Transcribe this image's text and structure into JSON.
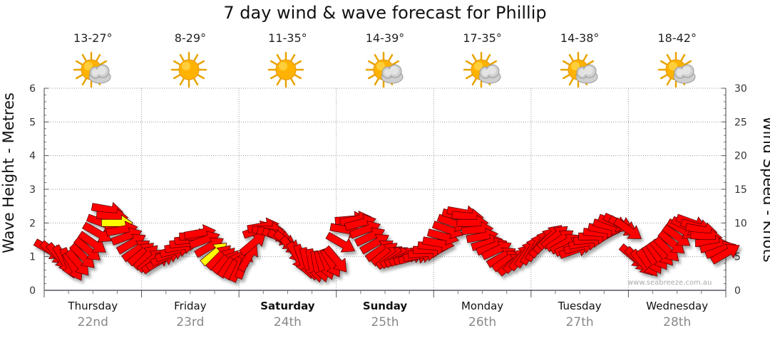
{
  "title": "7 day wind & wave forecast for Phillip",
  "days": [
    {
      "name": "Thursday",
      "date": "22nd",
      "temp": "13-27°",
      "icon": "sun-cloud-icon",
      "bold": false
    },
    {
      "name": "Friday",
      "date": "23rd",
      "temp": "8-29°",
      "icon": "sun-icon",
      "bold": false
    },
    {
      "name": "Saturday",
      "date": "24th",
      "temp": "11-35°",
      "icon": "sun-icon",
      "bold": true
    },
    {
      "name": "Sunday",
      "date": "25th",
      "temp": "14-39°",
      "icon": "sun-cloud-icon",
      "bold": true
    },
    {
      "name": "Monday",
      "date": "26th",
      "temp": "17-35°",
      "icon": "sun-cloud-icon",
      "bold": false
    },
    {
      "name": "Tuesday",
      "date": "27th",
      "temp": "14-38°",
      "icon": "sun-cloud-icon",
      "bold": false
    },
    {
      "name": "Wednesday",
      "date": "28th",
      "temp": "18-42°",
      "icon": "sun-cloud-icon",
      "bold": false
    }
  ],
  "credit": "www.seabreeze.com.au",
  "chart_data": {
    "type": "scatter",
    "title": "7 day wind & wave forecast for Phillip",
    "ylabel_left": "Wave Height - Metres",
    "ylabel_right": "Wind Speed - Knots",
    "ylim_left": [
      0,
      6
    ],
    "ylim_right": [
      0,
      30
    ],
    "yticks_left": [
      "0",
      "1",
      "2",
      "3",
      "4",
      "5",
      "6"
    ],
    "yticks_right": [
      "0",
      "5",
      "10",
      "15",
      "20",
      "25",
      "30"
    ],
    "grid": true,
    "categories": [
      "Thursday 22nd",
      "Friday 23rd",
      "Saturday 24th",
      "Sunday 25th",
      "Monday 26th",
      "Tuesday 27th",
      "Wednesday 28th"
    ],
    "wind_series": {
      "name": "Wind arrows",
      "x": [
        0.0,
        0.05,
        0.1,
        0.15,
        0.2,
        0.25,
        0.3,
        0.35,
        0.4,
        0.45,
        0.5,
        0.55,
        0.6,
        0.65,
        0.7,
        0.75,
        0.8,
        0.85,
        0.9,
        0.95,
        1.0,
        1.05,
        1.1,
        1.15,
        1.2,
        1.25,
        1.3,
        1.35,
        1.4,
        1.45,
        1.5,
        1.55,
        1.6,
        1.65,
        1.7,
        1.75,
        1.8,
        1.85,
        1.9,
        1.95,
        2.0,
        2.05,
        2.1,
        2.15,
        2.2,
        2.25,
        2.3,
        2.35,
        2.4,
        2.45,
        2.5,
        2.55,
        2.6,
        2.65,
        2.7,
        2.75,
        2.8,
        2.85,
        2.9,
        2.95,
        3.0,
        3.05,
        3.1,
        3.15,
        3.2,
        3.25,
        3.3,
        3.35,
        3.4,
        3.45,
        3.5,
        3.55,
        3.6,
        3.65,
        3.7,
        3.75,
        3.8,
        3.85,
        3.9,
        3.95,
        4.0,
        4.05,
        4.1,
        4.15,
        4.2,
        4.25,
        4.3,
        4.35,
        4.4,
        4.45,
        4.5,
        4.55,
        4.6,
        4.65,
        4.7,
        4.75,
        4.8,
        4.85,
        4.9,
        4.95,
        5.0,
        5.05,
        5.1,
        5.15,
        5.2,
        5.25,
        5.3,
        5.35,
        5.4,
        5.45,
        5.5,
        5.55,
        5.6,
        5.65,
        5.7,
        5.75,
        5.8,
        5.85,
        5.9,
        5.95,
        6.0,
        6.05,
        6.1,
        6.15,
        6.2,
        6.25,
        6.3,
        6.35,
        6.4,
        6.45,
        6.5,
        6.55,
        6.6,
        6.65,
        6.7,
        6.75,
        6.8,
        6.85,
        6.9,
        6.95
      ],
      "knots": [
        6,
        5.5,
        5,
        4.5,
        4,
        3.5,
        4,
        5,
        6,
        7,
        8.5,
        10,
        12,
        11,
        10,
        9,
        8,
        7,
        6,
        5.5,
        5,
        4.5,
        4.2,
        4.5,
        5,
        5.5,
        6,
        6.5,
        7,
        7.5,
        8,
        8.5,
        7.5,
        6.5,
        5.5,
        5,
        4.5,
        4,
        3.8,
        3.5,
        4,
        5,
        7,
        9,
        9.5,
        9,
        8.5,
        8,
        7.5,
        7,
        6,
        5,
        4.5,
        4,
        3.8,
        3.5,
        3.5,
        3.8,
        4,
        4.5,
        7,
        9,
        10.5,
        10.5,
        10,
        9,
        8,
        7,
        6,
        5.5,
        5,
        5,
        5,
        5,
        5,
        5,
        5.2,
        5.5,
        6,
        6.5,
        7,
        8,
        9,
        10,
        11,
        11.5,
        11,
        10,
        9,
        8,
        7,
        6.5,
        6,
        5,
        4.5,
        4,
        4.5,
        5,
        5.5,
        6,
        6.5,
        7,
        7.5,
        8,
        8,
        7.5,
        7,
        6.5,
        6,
        6.5,
        7,
        7.5,
        8,
        8.5,
        9,
        9.5,
        10,
        10,
        9.5,
        9,
        5,
        4.5,
        4,
        4,
        4.5,
        5,
        5.5,
        6,
        7,
        8,
        9,
        9.5,
        10,
        9.5,
        9,
        8,
        7,
        6.5,
        6,
        5.5
      ],
      "arrow_angle_deg": [
        30,
        40,
        50,
        60,
        70,
        60,
        50,
        45,
        40,
        35,
        30,
        20,
        10,
        5,
        0,
        -10,
        -20,
        -30,
        -35,
        -40,
        -45,
        -40,
        -35,
        -30,
        -25,
        -20,
        -15,
        -10,
        -5,
        -5,
        0,
        -10,
        -20,
        -30,
        -40,
        -45,
        -50,
        -55,
        -60,
        -65,
        -70,
        -60,
        -40,
        -20,
        -10,
        0,
        10,
        20,
        30,
        40,
        50,
        60,
        70,
        75,
        80,
        80,
        75,
        70,
        60,
        50,
        30,
        10,
        -5,
        -10,
        -15,
        -20,
        -25,
        -30,
        -35,
        -40,
        -40,
        -35,
        -30,
        -25,
        -20,
        -15,
        -10,
        -5,
        0,
        5,
        10,
        15,
        20,
        20,
        15,
        10,
        5,
        0,
        -5,
        -10,
        -15,
        -20,
        -25,
        -30,
        -35,
        -40,
        -45,
        -50,
        -55,
        -60,
        -60,
        -55,
        -50,
        -45,
        -40,
        -35,
        -30,
        -25,
        -20,
        -15,
        -10,
        -5,
        0,
        5,
        10,
        15,
        20,
        25,
        30,
        35,
        40,
        45,
        50,
        55,
        60,
        55,
        50,
        45,
        40,
        35,
        30,
        25,
        20,
        15,
        10,
        5,
        0,
        -10,
        -20,
        -30
      ],
      "highlight_indices": [
        14,
        34
      ],
      "color": "#ff0000",
      "highlight_color": "#ffff00",
      "outline_color": "#600000"
    }
  }
}
